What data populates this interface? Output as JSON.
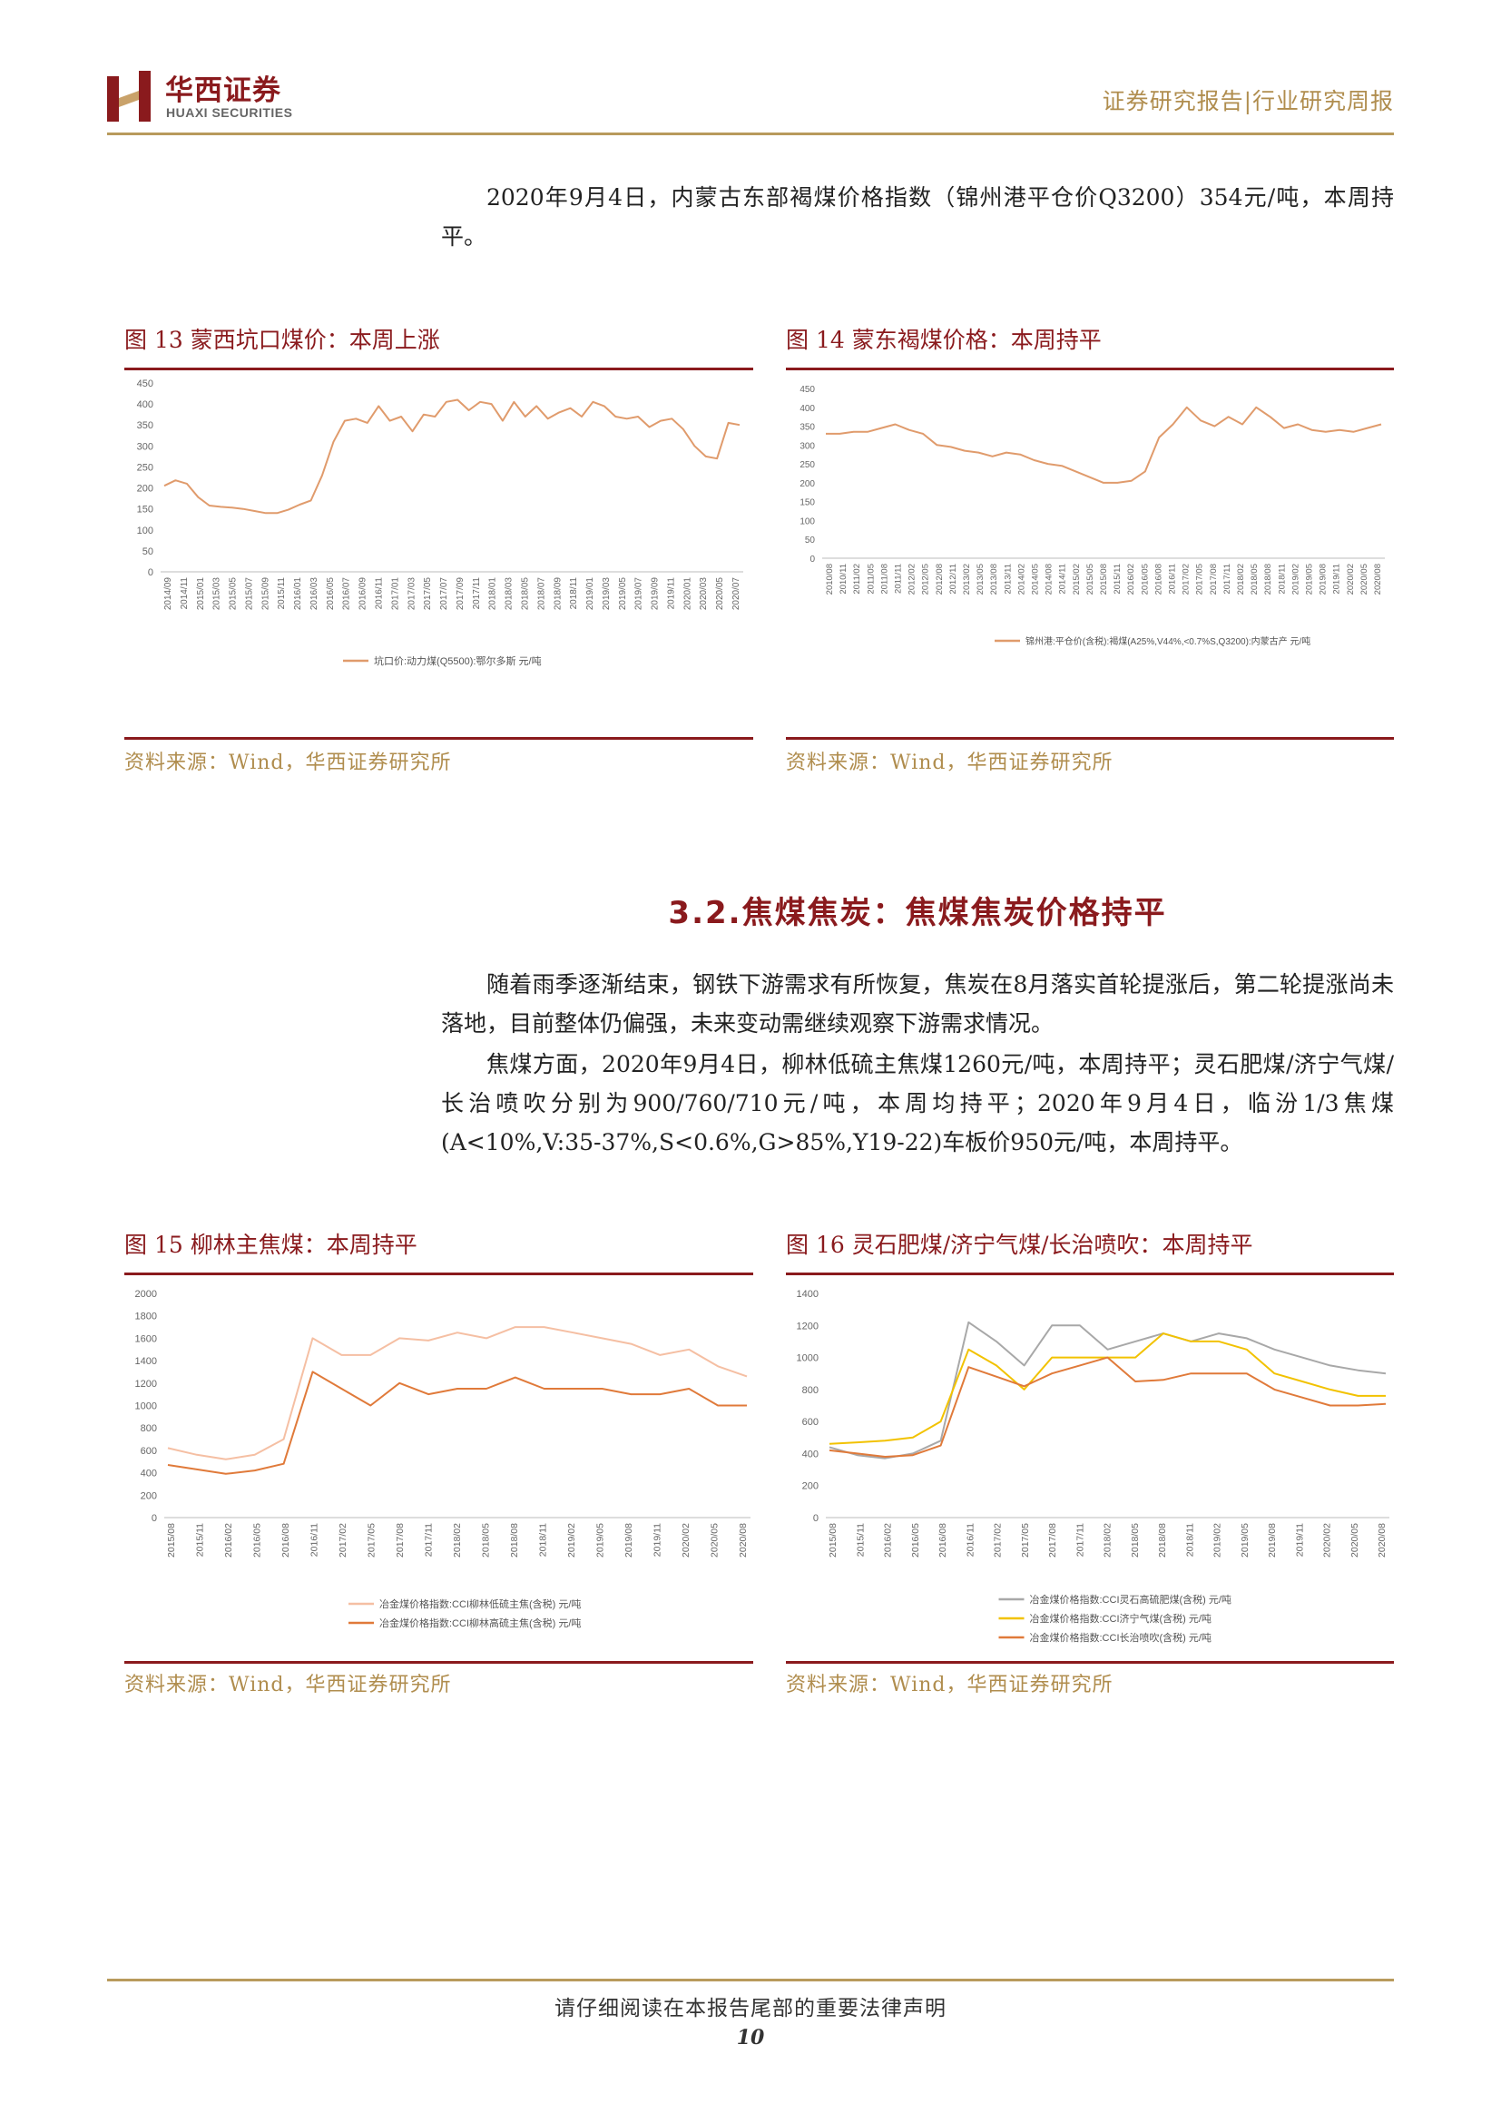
{
  "header": {
    "logo_cn": "华西证券",
    "logo_en": "HUAXI SECURITIES",
    "report_type": "证券研究报告|行业研究周报"
  },
  "paragraphs": {
    "p1": "2020年9月4日，内蒙古东部褐煤价格指数（锦州港平仓价Q3200）354元/吨，本周持平。",
    "p2": "随着雨季逐渐结束，钢铁下游需求有所恢复，焦炭在8月落实首轮提涨后，第二轮提涨尚未落地，目前整体仍偏强，未来变动需继续观察下游需求情况。",
    "p3": "焦煤方面，2020年9月4日，柳林低硫主焦煤1260元/吨，本周持平；灵石肥煤/济宁气煤/长治喷吹分别为900/760/710元/吨，本周均持平；2020年9月4日，临汾1/3焦煤(A<10%,V:35-37%,S<0.6%,G>85%,Y19-22)车板价950元/吨，本周持平。"
  },
  "section_title": "3.2.焦煤焦炭：焦煤焦炭价格持平",
  "figures": {
    "fig13": {
      "title": "图 13 蒙西坑口煤价：本周上涨",
      "source": "资料来源：Wind，华西证券研究所"
    },
    "fig14": {
      "title": "图 14 蒙东褐煤价格：本周持平",
      "source": "资料来源：Wind，华西证券研究所"
    },
    "fig15": {
      "title": "图 15 柳林主焦煤：本周持平",
      "source": "资料来源：Wind，华西证券研究所"
    },
    "fig16": {
      "title": "图 16 灵石肥煤/济宁气煤/长治喷吹：本周持平",
      "source": "资料来源：Wind，华西证券研究所"
    }
  },
  "footer": {
    "note": "请仔细阅读在本报告尾部的重要法律声明",
    "page_number": "10"
  },
  "chart_data": [
    {
      "id": "fig13",
      "type": "line",
      "ylim": [
        0,
        450
      ],
      "yticks": [
        "0",
        "50",
        "100",
        "150",
        "200",
        "250",
        "300",
        "350",
        "400",
        "450"
      ],
      "xticks": [
        "2014/09",
        "2014/11",
        "2015/01",
        "2015/03",
        "2015/05",
        "2015/07",
        "2015/09",
        "2015/11",
        "2016/01",
        "2016/03",
        "2016/05",
        "2016/07",
        "2016/09",
        "2016/11",
        "2017/01",
        "2017/03",
        "2017/05",
        "2017/07",
        "2017/09",
        "2017/11",
        "2018/01",
        "2018/03",
        "2018/05",
        "2018/07",
        "2018/09",
        "2018/11",
        "2019/01",
        "2019/03",
        "2019/05",
        "2019/07",
        "2019/09",
        "2019/11",
        "2020/01",
        "2020/03",
        "2020/05",
        "2020/07"
      ],
      "series": [
        {
          "name": "坑口价:动力煤(Q5500):鄂尔多斯 元/吨",
          "color": "#e09b6c",
          "values": [
            205,
            218,
            210,
            178,
            158,
            155,
            153,
            150,
            145,
            140,
            140,
            148,
            160,
            170,
            230,
            310,
            360,
            365,
            355,
            395,
            360,
            370,
            335,
            375,
            370,
            405,
            410,
            385,
            405,
            400,
            360,
            405,
            370,
            395,
            365,
            380,
            390,
            370,
            405,
            395,
            370,
            365,
            370,
            345,
            360,
            365,
            340,
            300,
            275,
            270,
            355,
            350
          ]
        }
      ]
    },
    {
      "id": "fig14",
      "type": "line",
      "ylim": [
        0,
        450
      ],
      "yticks": [
        "0",
        "50",
        "100",
        "150",
        "200",
        "250",
        "300",
        "350",
        "400",
        "450"
      ],
      "xticks": [
        "2010/08",
        "2010/11",
        "2011/02",
        "2011/05",
        "2011/08",
        "2011/11",
        "2012/02",
        "2012/05",
        "2012/08",
        "2012/11",
        "2013/02",
        "2013/05",
        "2013/08",
        "2013/11",
        "2014/02",
        "2014/05",
        "2014/08",
        "2014/11",
        "2015/02",
        "2015/05",
        "2015/08",
        "2015/11",
        "2016/02",
        "2016/05",
        "2016/08",
        "2016/11",
        "2017/02",
        "2017/05",
        "2017/08",
        "2017/11",
        "2018/02",
        "2018/05",
        "2018/08",
        "2018/11",
        "2019/02",
        "2019/05",
        "2019/08",
        "2019/11",
        "2020/02",
        "2020/05",
        "2020/08"
      ],
      "series": [
        {
          "name": "锦州港:平仓价(含税):褐煤(A25%,V44%,<0.7%S,Q3200):内蒙古产 元/吨",
          "color": "#e09b6c",
          "values": [
            330,
            330,
            335,
            335,
            345,
            355,
            340,
            330,
            300,
            295,
            285,
            280,
            270,
            280,
            275,
            260,
            250,
            245,
            230,
            215,
            200,
            200,
            205,
            230,
            320,
            355,
            400,
            365,
            350,
            375,
            355,
            400,
            375,
            345,
            355,
            340,
            335,
            340,
            335,
            345,
            355
          ]
        }
      ]
    },
    {
      "id": "fig15",
      "type": "line",
      "ylim": [
        0,
        2000
      ],
      "yticks": [
        "0",
        "200",
        "400",
        "600",
        "800",
        "1000",
        "1200",
        "1400",
        "1600",
        "1800",
        "2000"
      ],
      "xticks": [
        "2015/08",
        "2015/11",
        "2016/02",
        "2016/05",
        "2016/08",
        "2016/11",
        "2017/02",
        "2017/05",
        "2017/08",
        "2017/11",
        "2018/02",
        "2018/05",
        "2018/08",
        "2018/11",
        "2019/02",
        "2019/05",
        "2019/08",
        "2019/11",
        "2020/02",
        "2020/05",
        "2020/08"
      ],
      "series": [
        {
          "name": "冶金煤价格指数:CCI柳林低硫主焦(含税) 元/吨",
          "color": "#f5bfa3",
          "values": [
            620,
            560,
            520,
            560,
            700,
            1600,
            1450,
            1450,
            1600,
            1580,
            1650,
            1600,
            1700,
            1700,
            1650,
            1600,
            1550,
            1450,
            1500,
            1350,
            1260
          ]
        },
        {
          "name": "冶金煤价格指数:CCI柳林高硫主焦(含税) 元/吨",
          "color": "#e07a3a",
          "values": [
            470,
            430,
            390,
            420,
            480,
            1300,
            1150,
            1000,
            1200,
            1100,
            1150,
            1150,
            1250,
            1150,
            1150,
            1150,
            1100,
            1100,
            1150,
            1000,
            1000
          ]
        }
      ]
    },
    {
      "id": "fig16",
      "type": "line",
      "ylim": [
        0,
        1400
      ],
      "yticks": [
        "0",
        "200",
        "400",
        "600",
        "800",
        "1000",
        "1200",
        "1400"
      ],
      "xticks": [
        "2015/08",
        "2015/11",
        "2016/02",
        "2016/05",
        "2016/08",
        "2016/11",
        "2017/02",
        "2017/05",
        "2017/08",
        "2017/11",
        "2018/02",
        "2018/05",
        "2018/08",
        "2018/11",
        "2019/02",
        "2019/05",
        "2019/08",
        "2019/11",
        "2020/02",
        "2020/05",
        "2020/08"
      ],
      "series": [
        {
          "name": "冶金煤价格指数:CCI灵石高硫肥煤(含税) 元/吨",
          "color": "#a8a8a8",
          "values": [
            440,
            390,
            370,
            400,
            480,
            1220,
            1100,
            950,
            1200,
            1200,
            1050,
            1100,
            1150,
            1100,
            1150,
            1120,
            1050,
            1000,
            950,
            920,
            900
          ]
        },
        {
          "name": "冶金煤价格指数:CCI济宁气煤(含税) 元/吨",
          "color": "#f2c200",
          "values": [
            460,
            470,
            480,
            500,
            600,
            1050,
            950,
            800,
            1000,
            1000,
            1000,
            1000,
            1150,
            1100,
            1100,
            1050,
            900,
            850,
            800,
            760,
            760
          ]
        },
        {
          "name": "冶金煤价格指数:CCI长治喷吹(含税) 元/吨",
          "color": "#e07a3a",
          "values": [
            420,
            400,
            380,
            390,
            450,
            940,
            880,
            820,
            900,
            950,
            1000,
            850,
            860,
            900,
            900,
            900,
            800,
            750,
            700,
            700,
            710
          ]
        }
      ]
    }
  ]
}
